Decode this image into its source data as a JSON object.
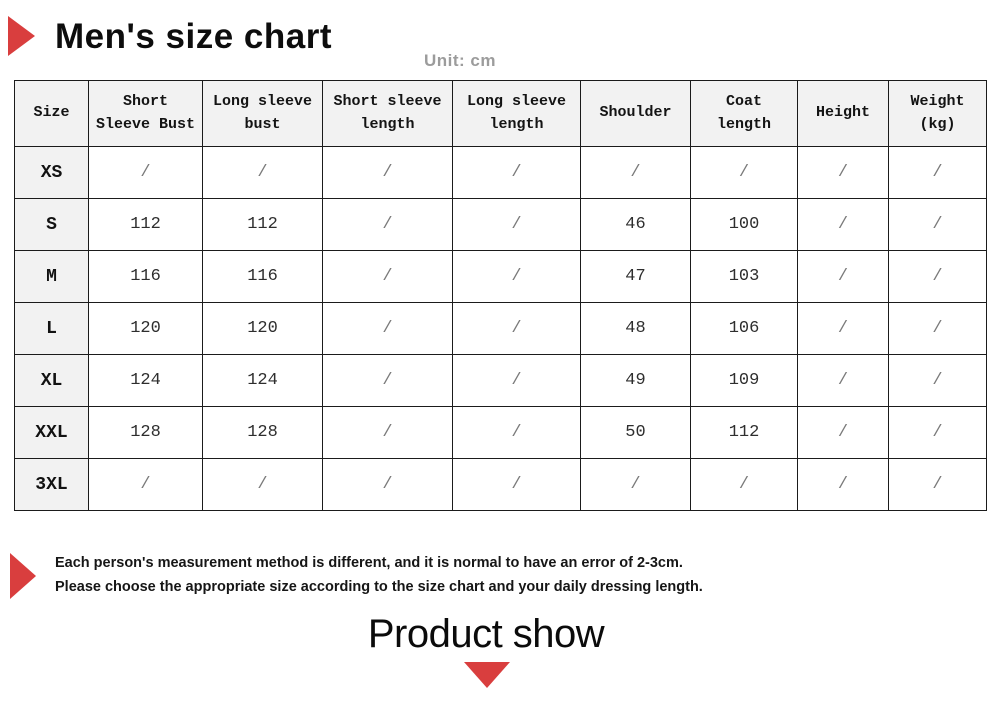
{
  "header": {
    "title": "Men's size chart",
    "unit_label": "Unit: cm"
  },
  "table": {
    "columns": [
      "Size",
      "Short\nSleeve Bust",
      "Long sleeve\nbust",
      "Short sleeve\nlength",
      "Long sleeve\nlength",
      "Shoulder",
      "Coat\nlength",
      "Height",
      "Weight\n(kg)"
    ],
    "rows": [
      {
        "size": "XS",
        "values": [
          "/",
          "/",
          "/",
          "/",
          "/",
          "/",
          "/",
          "/"
        ]
      },
      {
        "size": "S",
        "values": [
          "112",
          "112",
          "/",
          "/",
          "46",
          "100",
          "/",
          "/"
        ]
      },
      {
        "size": "M",
        "values": [
          "116",
          "116",
          "/",
          "/",
          "47",
          "103",
          "/",
          "/"
        ]
      },
      {
        "size": "L",
        "values": [
          "120",
          "120",
          "/",
          "/",
          "48",
          "106",
          "/",
          "/"
        ]
      },
      {
        "size": "XL",
        "values": [
          "124",
          "124",
          "/",
          "/",
          "49",
          "109",
          "/",
          "/"
        ]
      },
      {
        "size": "XXL",
        "values": [
          "128",
          "128",
          "/",
          "/",
          "50",
          "112",
          "/",
          "/"
        ]
      },
      {
        "size": "3XL",
        "values": [
          "/",
          "/",
          "/",
          "/",
          "/",
          "/",
          "/",
          "/"
        ]
      }
    ]
  },
  "notes": {
    "line1": "Each person's measurement method is different, and it is normal to have an error of 2-3cm.",
    "line2": "Please choose the appropriate size according to the size chart and your daily dressing length."
  },
  "footer": {
    "heading": "Product show"
  },
  "colors": {
    "accent_red": "#d93e3e",
    "table_border": "#1b1b1b",
    "header_cell_bg": "#f2f2f2",
    "unit_text": "#9c9c9c"
  }
}
